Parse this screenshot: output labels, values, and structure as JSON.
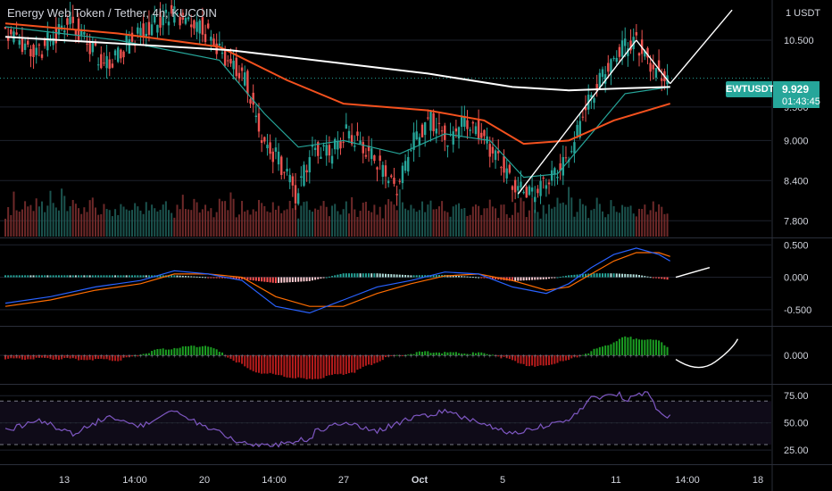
{
  "header": {
    "title": "Energy Web Token / Tether, 4h, KUCOIN"
  },
  "price_axis": {
    "unit_label": "1 USDT"
  },
  "last_price": {
    "symbol": "EWTUSDT",
    "price": "9.929",
    "countdown": "01:43:45"
  },
  "colors": {
    "up": "#26a69a",
    "down": "#ef5350",
    "sma_white": "#ffffff",
    "sma_red": "#f4511e",
    "ema_green": "#26a69a",
    "macd_line": "#2962ff",
    "signal_line": "#ff6d00",
    "osc_green": "#1b9e22",
    "osc_red": "#b71c1c",
    "rsi": "#7e57c2"
  },
  "chart_data": [
    {
      "type": "candlestick",
      "title": "Energy Web Token / Tether, 4h, KUCOIN",
      "x_ticks": [
        "13",
        "14:00",
        "20",
        "14:00",
        "27",
        "Oct",
        "5",
        "11",
        "14:00",
        "18"
      ],
      "y_ticks": [
        7.8,
        8.4,
        9.0,
        9.5,
        10.5
      ],
      "ylim": [
        7.55,
        11.1
      ],
      "price_path": [
        [
          0,
          10.7
        ],
        [
          6,
          10.3
        ],
        [
          12,
          10.8
        ],
        [
          18,
          10.1
        ],
        [
          24,
          10.6
        ],
        [
          30,
          10.9
        ],
        [
          35,
          10.7
        ],
        [
          39,
          10.3
        ],
        [
          43,
          9.9
        ],
        [
          46,
          9.0
        ],
        [
          49,
          8.7
        ],
        [
          52,
          8.2
        ],
        [
          55,
          8.9
        ],
        [
          58,
          8.8
        ],
        [
          61,
          9.1
        ],
        [
          64,
          8.9
        ],
        [
          67,
          8.6
        ],
        [
          70,
          8.3
        ],
        [
          73,
          9.0
        ],
        [
          76,
          9.3
        ],
        [
          79,
          9.0
        ],
        [
          82,
          9.3
        ],
        [
          85,
          9.1
        ],
        [
          88,
          8.7
        ],
        [
          91,
          8.3
        ],
        [
          94,
          8.2
        ],
        [
          97,
          8.4
        ],
        [
          100,
          8.7
        ],
        [
          103,
          9.4
        ],
        [
          106,
          9.9
        ],
        [
          109,
          10.3
        ],
        [
          112,
          10.5
        ],
        [
          115,
          10.1
        ],
        [
          118,
          9.95
        ]
      ],
      "sma_white": [
        [
          0,
          10.55
        ],
        [
          20,
          10.45
        ],
        [
          40,
          10.35
        ],
        [
          60,
          10.15
        ],
        [
          75,
          10.0
        ],
        [
          90,
          9.8
        ],
        [
          100,
          9.75
        ],
        [
          110,
          9.78
        ],
        [
          118,
          9.8
        ]
      ],
      "sma_red": [
        [
          0,
          10.75
        ],
        [
          20,
          10.6
        ],
        [
          38,
          10.4
        ],
        [
          50,
          9.9
        ],
        [
          60,
          9.55
        ],
        [
          75,
          9.45
        ],
        [
          85,
          9.3
        ],
        [
          92,
          8.95
        ],
        [
          100,
          9.0
        ],
        [
          108,
          9.3
        ],
        [
          118,
          9.55
        ]
      ],
      "ema_green": [
        [
          0,
          10.7
        ],
        [
          20,
          10.5
        ],
        [
          38,
          10.2
        ],
        [
          46,
          9.4
        ],
        [
          52,
          8.9
        ],
        [
          60,
          9.0
        ],
        [
          70,
          8.8
        ],
        [
          78,
          9.1
        ],
        [
          86,
          9.0
        ],
        [
          92,
          8.45
        ],
        [
          98,
          8.5
        ],
        [
          104,
          9.1
        ],
        [
          110,
          9.7
        ],
        [
          118,
          9.8
        ]
      ],
      "volume_profile": [
        3,
        6,
        4,
        8,
        5,
        3,
        4,
        7,
        5,
        4,
        3,
        6,
        4,
        5,
        3,
        4,
        8,
        6,
        5,
        4,
        9,
        7,
        3,
        4,
        6,
        5,
        4,
        3,
        5,
        4,
        6,
        7,
        5,
        3,
        4,
        6,
        5,
        4,
        3,
        5,
        4,
        6,
        5,
        4,
        3,
        4,
        5,
        6,
        4,
        3,
        5,
        4,
        6,
        5,
        4,
        3,
        4,
        5,
        4,
        3
      ],
      "annotations": [
        {
          "type": "trendline",
          "points": [
            [
              91,
              8.2
            ],
            [
              112,
              10.5
            ]
          ]
        },
        {
          "type": "trendline",
          "points": [
            [
              112,
              10.5
            ],
            [
              118,
              9.85
            ]
          ]
        },
        {
          "type": "trendline",
          "points": [
            [
              118,
              9.85
            ],
            [
              129,
              10.95
            ]
          ]
        }
      ]
    },
    {
      "type": "line",
      "indicator": "MACD",
      "y_ticks": [
        0.5,
        0.0,
        -0.5
      ],
      "ylim": [
        -0.75,
        0.6
      ],
      "macd": [
        [
          0,
          -0.4
        ],
        [
          8,
          -0.3
        ],
        [
          16,
          -0.15
        ],
        [
          24,
          -0.05
        ],
        [
          30,
          0.1
        ],
        [
          36,
          0.05
        ],
        [
          42,
          -0.05
        ],
        [
          48,
          -0.45
        ],
        [
          54,
          -0.55
        ],
        [
          60,
          -0.35
        ],
        [
          66,
          -0.15
        ],
        [
          72,
          -0.05
        ],
        [
          78,
          0.08
        ],
        [
          84,
          0.05
        ],
        [
          90,
          -0.15
        ],
        [
          96,
          -0.25
        ],
        [
          100,
          -0.1
        ],
        [
          104,
          0.15
        ],
        [
          108,
          0.35
        ],
        [
          112,
          0.45
        ],
        [
          116,
          0.35
        ],
        [
          118,
          0.25
        ]
      ],
      "signal": [
        [
          0,
          -0.45
        ],
        [
          8,
          -0.35
        ],
        [
          16,
          -0.2
        ],
        [
          24,
          -0.1
        ],
        [
          30,
          0.05
        ],
        [
          36,
          0.05
        ],
        [
          42,
          0.0
        ],
        [
          48,
          -0.3
        ],
        [
          54,
          -0.45
        ],
        [
          60,
          -0.45
        ],
        [
          66,
          -0.25
        ],
        [
          72,
          -0.1
        ],
        [
          78,
          0.02
        ],
        [
          84,
          0.05
        ],
        [
          90,
          -0.05
        ],
        [
          96,
          -0.2
        ],
        [
          100,
          -0.15
        ],
        [
          104,
          0.05
        ],
        [
          108,
          0.25
        ],
        [
          112,
          0.38
        ],
        [
          116,
          0.38
        ],
        [
          118,
          0.32
        ]
      ],
      "projection": [
        [
          119,
          0.0
        ],
        [
          125,
          0.15
        ]
      ]
    },
    {
      "type": "bar",
      "indicator": "Momentum oscillator",
      "y_ticks": [
        0.0
      ],
      "ylim": [
        -0.35,
        0.35
      ],
      "histogram_profile": [
        [
          0,
          -0.05
        ],
        [
          10,
          -0.04
        ],
        [
          20,
          -0.06
        ],
        [
          28,
          0.08
        ],
        [
          36,
          0.12
        ],
        [
          44,
          -0.2
        ],
        [
          54,
          -0.3
        ],
        [
          62,
          -0.2
        ],
        [
          68,
          -0.02
        ],
        [
          74,
          0.04
        ],
        [
          80,
          0.03
        ],
        [
          86,
          0.02
        ],
        [
          94,
          -0.15
        ],
        [
          100,
          -0.06
        ],
        [
          104,
          0.05
        ],
        [
          110,
          0.22
        ],
        [
          116,
          0.18
        ],
        [
          119,
          0.03
        ]
      ],
      "projection": [
        [
          119,
          -0.05
        ],
        [
          123,
          -0.15
        ],
        [
          126,
          -0.08
        ],
        [
          130,
          0.2
        ]
      ]
    },
    {
      "type": "line",
      "indicator": "RSI",
      "y_ticks": [
        75.0,
        50.0,
        25.0
      ],
      "ylim": [
        12,
        85
      ],
      "bands": [
        30,
        70
      ],
      "rsi": [
        [
          0,
          45
        ],
        [
          6,
          55
        ],
        [
          12,
          42
        ],
        [
          18,
          58
        ],
        [
          24,
          50
        ],
        [
          30,
          63
        ],
        [
          36,
          48
        ],
        [
          42,
          34
        ],
        [
          48,
          32
        ],
        [
          54,
          38
        ],
        [
          60,
          48
        ],
        [
          66,
          40
        ],
        [
          72,
          52
        ],
        [
          78,
          58
        ],
        [
          84,
          48
        ],
        [
          90,
          38
        ],
        [
          96,
          45
        ],
        [
          100,
          50
        ],
        [
          104,
          70
        ],
        [
          110,
          74
        ],
        [
          114,
          80
        ],
        [
          116,
          62
        ],
        [
          118,
          58
        ]
      ]
    }
  ]
}
